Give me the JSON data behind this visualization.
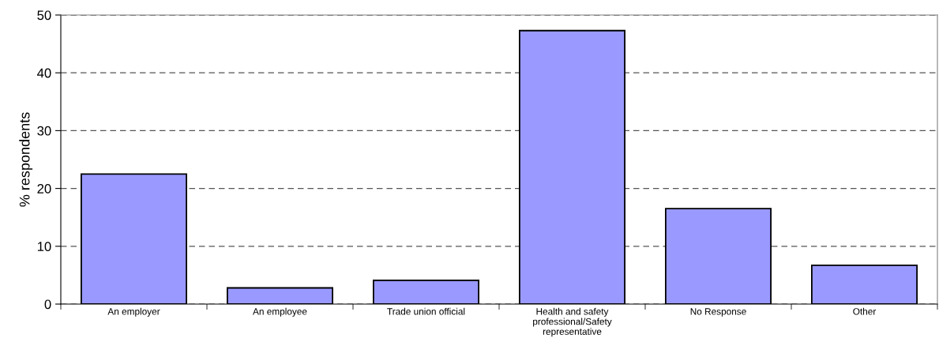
{
  "chart_data": {
    "type": "bar",
    "ylabel": "% respondents",
    "categories": [
      "An employer",
      "An employee",
      "Trade union official",
      "Health and safety\nprofessional/Safety\nrepresentative",
      "No Response",
      "Other"
    ],
    "values": [
      22.5,
      2.8,
      4.1,
      47.3,
      16.5,
      6.7
    ],
    "color": "#9999ff",
    "ylim": [
      0,
      50
    ],
    "yticks": [
      0,
      10,
      20,
      30,
      40,
      50
    ],
    "grid": "y",
    "line_style": "dashed"
  }
}
